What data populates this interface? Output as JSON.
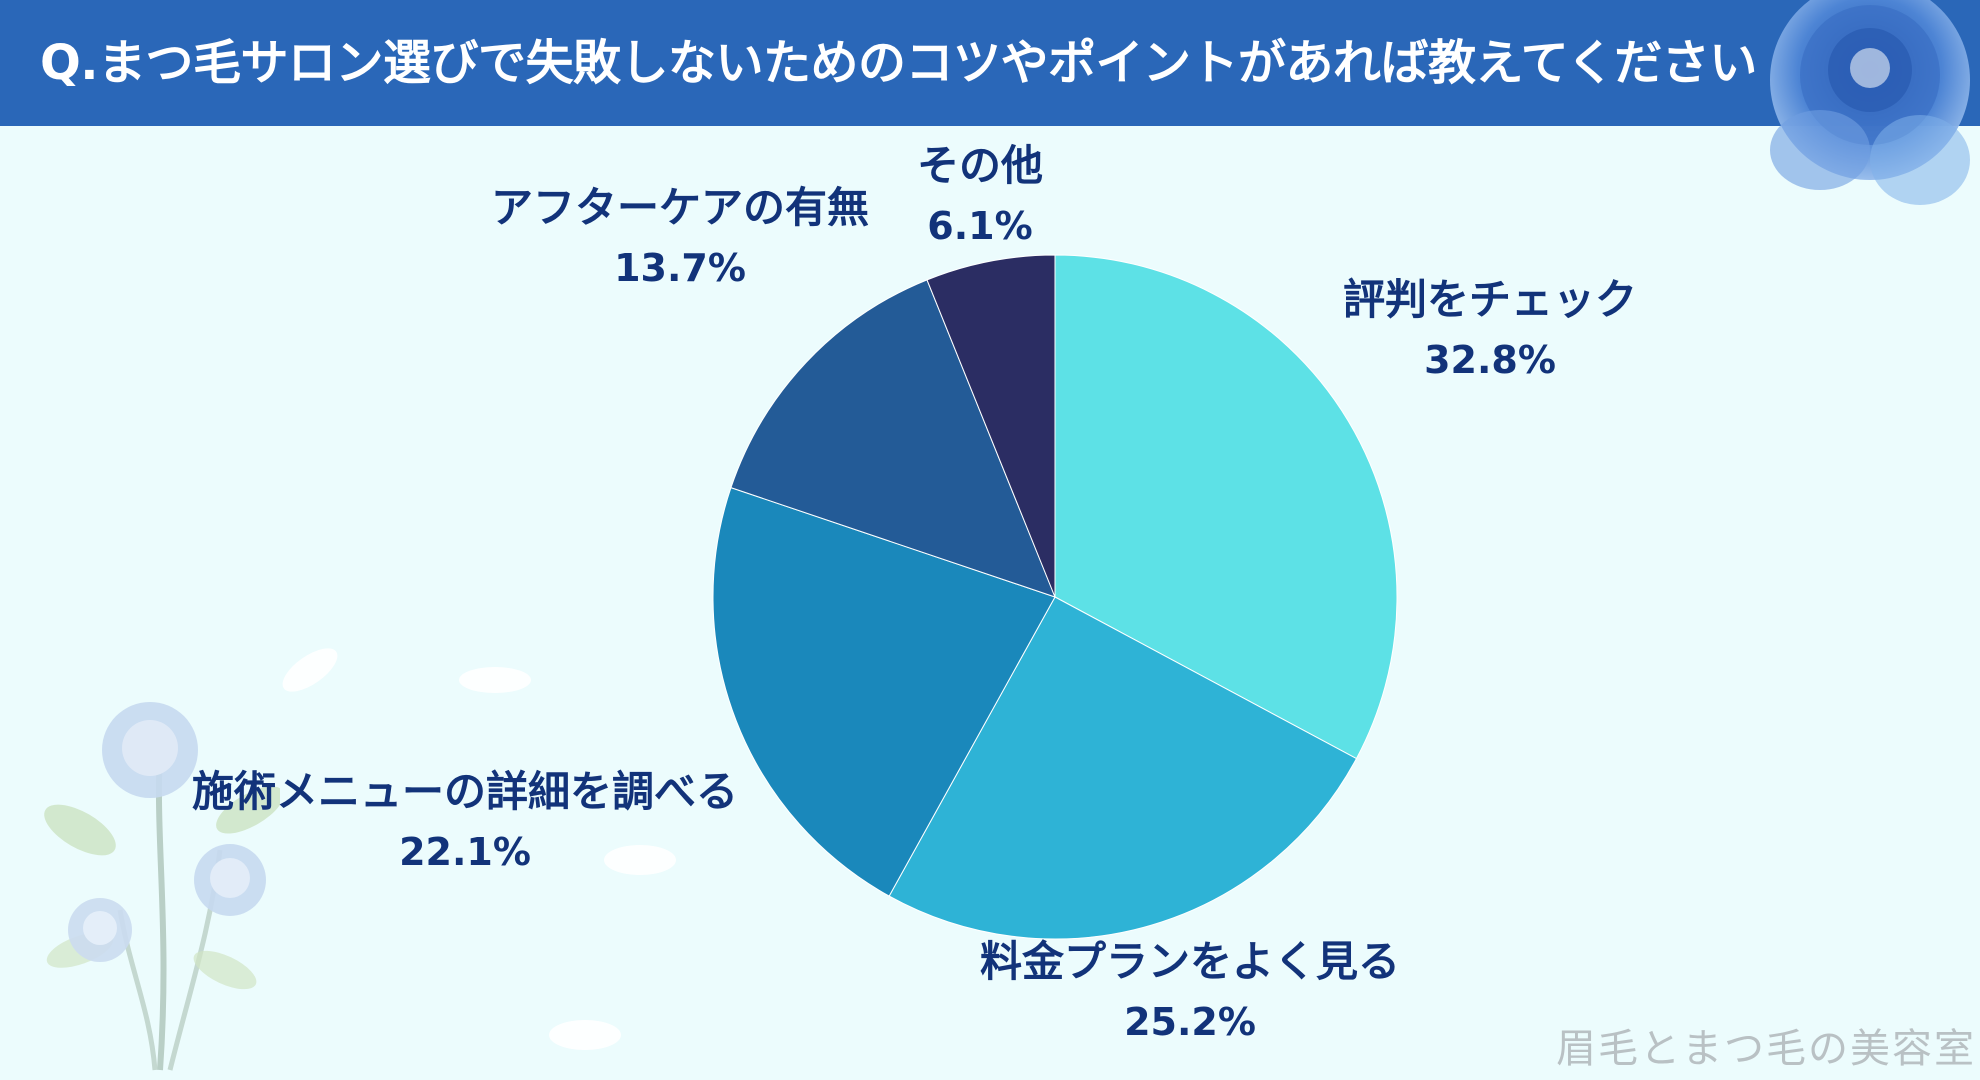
{
  "header": {
    "title": "Q.まつ毛サロン選びで失敗しないためのコツやポイントがあれば教えてください"
  },
  "chart_data": {
    "type": "pie",
    "title": "Q.まつ毛サロン選びで失敗しないためのコツやポイントがあれば教えてください",
    "slices": [
      {
        "label": "評判をチェック",
        "value": 32.8,
        "display": "32.8%",
        "color": "#5de1e6"
      },
      {
        "label": "料金プランをよく見る",
        "value": 25.2,
        "display": "25.2%",
        "color": "#2eb3d6"
      },
      {
        "label": "施術メニューの詳細を調べる",
        "value": 22.1,
        "display": "22.1%",
        "color": "#1a88bb"
      },
      {
        "label": "アフターケアの有無",
        "value": 13.7,
        "display": "13.7%",
        "color": "#235b97"
      },
      {
        "label": "その他",
        "value": 6.1,
        "display": "6.1%",
        "color": "#2b2d63"
      }
    ]
  },
  "watermark": "眉毛とまつ毛の美容室",
  "colors": {
    "header": "#2a67b8",
    "background": "#ecfcfd",
    "label_text": "#12337a"
  }
}
